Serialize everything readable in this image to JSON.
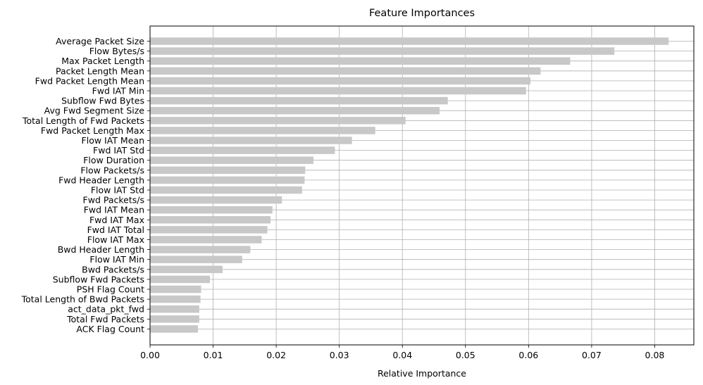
{
  "chart_data": {
    "type": "bar",
    "orientation": "horizontal",
    "title": "Feature Importances",
    "xlabel": "Relative Importance",
    "ylabel": "",
    "xlim": [
      0,
      0.0862
    ],
    "xticks": [
      "0.00",
      "0.01",
      "0.02",
      "0.03",
      "0.04",
      "0.05",
      "0.06",
      "0.07",
      "0.08"
    ],
    "xtick_values": [
      0,
      0.01,
      0.02,
      0.03,
      0.04,
      0.05,
      0.06,
      0.07,
      0.08
    ],
    "grid": true,
    "bar_color": "#c8c8c8",
    "grid_color": "#b0b0b0",
    "categories": [
      "Average Packet Size",
      "Flow Bytes/s",
      "Max Packet Length",
      "Packet Length Mean",
      "Fwd Packet Length Mean",
      "Fwd IAT Min",
      "Subflow Fwd Bytes",
      "Avg Fwd Segment Size",
      "Total Length of Fwd Packets",
      "Fwd Packet Length Max",
      "Flow IAT Mean",
      "Fwd IAT Std",
      "Flow Duration",
      "Flow Packets/s",
      "Fwd Header Length",
      "Flow IAT Std",
      "Fwd Packets/s",
      "Fwd IAT Mean",
      "Fwd IAT Max",
      "Fwd IAT Total",
      "Flow IAT Max",
      "Bwd Header Length",
      "Flow IAT Min",
      "Bwd Packets/s",
      "Subflow Fwd Packets",
      "PSH Flag Count",
      "Total Length of Bwd Packets",
      "act_data_pkt_fwd",
      "Total Fwd Packets",
      "ACK Flag Count"
    ],
    "values": [
      0.0822,
      0.0736,
      0.0666,
      0.0619,
      0.0603,
      0.0596,
      0.0472,
      0.0459,
      0.0405,
      0.0357,
      0.032,
      0.0293,
      0.0259,
      0.0246,
      0.0245,
      0.0241,
      0.0209,
      0.0194,
      0.0191,
      0.0186,
      0.0177,
      0.0159,
      0.0146,
      0.0115,
      0.0095,
      0.0081,
      0.008,
      0.0078,
      0.0078,
      0.0076
    ]
  }
}
